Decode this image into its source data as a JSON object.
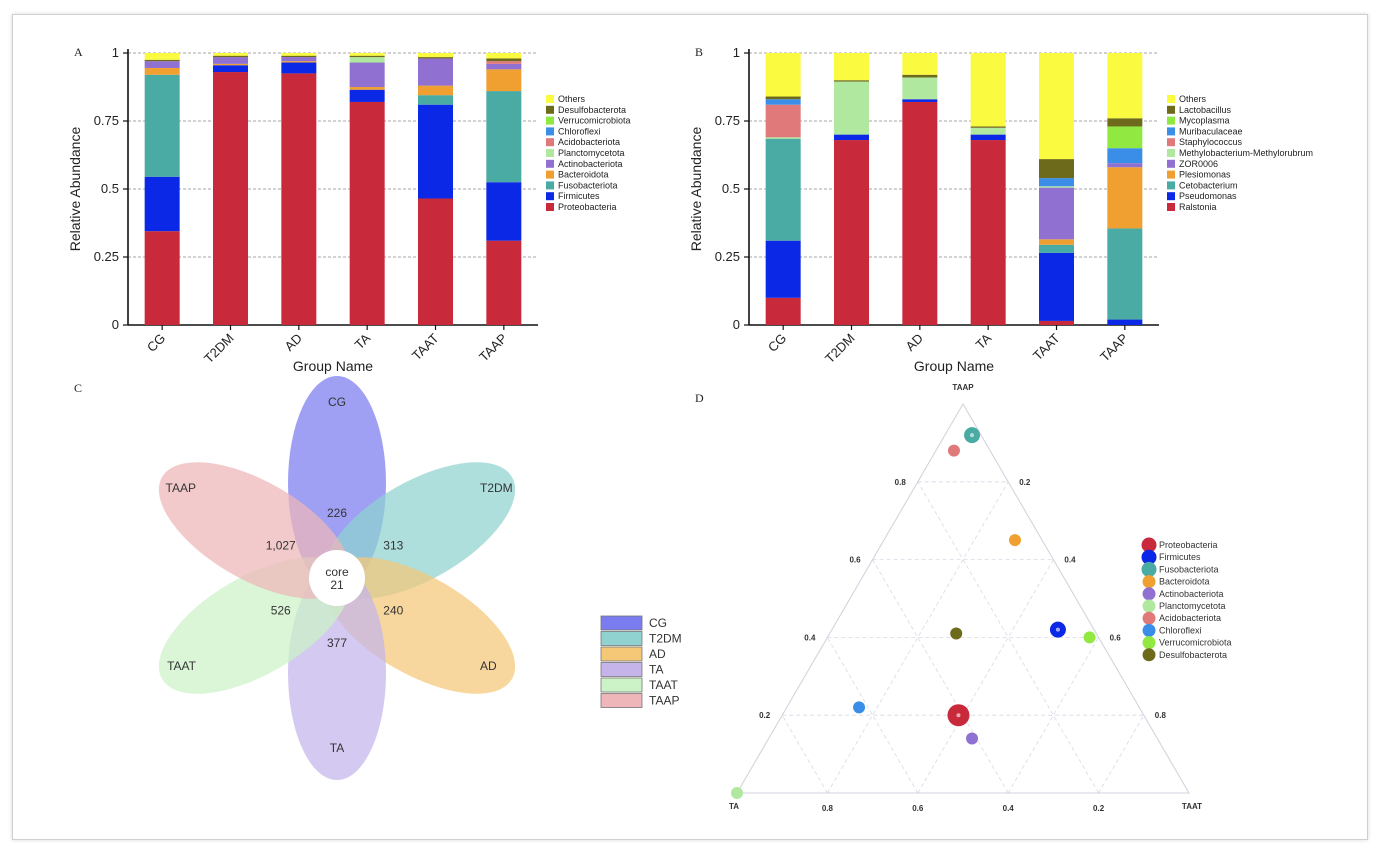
{
  "panels": {
    "a": "A",
    "b": "B",
    "c": "C",
    "d": "D"
  },
  "chart_data": [
    {
      "type": "bar",
      "stacked": true,
      "panel": "A",
      "xlabel": "Group Name",
      "ylabel": "Relative Abundance",
      "ylim": [
        0,
        1
      ],
      "yticks": [
        "0",
        "0.25",
        "0.5",
        "0.75",
        "1"
      ],
      "categories": [
        "CG",
        "T2DM",
        "AD",
        "TA",
        "TAAT",
        "TAAP"
      ],
      "grid": "dashed horizontal",
      "legend_position": "right",
      "series": [
        {
          "name": "Proteobacteria",
          "color": "#c82a3c",
          "values": [
            0.345,
            0.93,
            0.925,
            0.82,
            0.465,
            0.31
          ]
        },
        {
          "name": "Firmicutes",
          "color": "#0a28e6",
          "values": [
            0.2,
            0.025,
            0.04,
            0.045,
            0.345,
            0.215
          ]
        },
        {
          "name": "Fusobacteriota",
          "color": "#4aaaa4",
          "values": [
            0.375,
            0.0,
            0.0,
            0.0,
            0.035,
            0.335
          ]
        },
        {
          "name": "Bacteroidota",
          "color": "#f0a030",
          "values": [
            0.025,
            0.005,
            0.005,
            0.01,
            0.035,
            0.08
          ]
        },
        {
          "name": "Actinobacteriota",
          "color": "#9070d0",
          "values": [
            0.025,
            0.025,
            0.015,
            0.09,
            0.1,
            0.02
          ]
        },
        {
          "name": "Planctomycetota",
          "color": "#b0e8a0",
          "values": [
            0.0,
            0.0,
            0.0,
            0.02,
            0.0,
            0.0
          ]
        },
        {
          "name": "Acidobacteriota",
          "color": "#e07a7a",
          "values": [
            0.0,
            0.0,
            0.0,
            0.0,
            0.0,
            0.01
          ]
        },
        {
          "name": "Chloroflexi",
          "color": "#3a8ee8",
          "values": [
            0.0,
            0.0,
            0.0,
            0.0,
            0.0,
            0.0
          ]
        },
        {
          "name": "Verrucomicrobiota",
          "color": "#90e840",
          "values": [
            0.0,
            0.0,
            0.0,
            0.0,
            0.0,
            0.0
          ]
        },
        {
          "name": "Desulfobacterota",
          "color": "#6e6a1c",
          "values": [
            0.005,
            0.005,
            0.005,
            0.005,
            0.005,
            0.01
          ]
        },
        {
          "name": "Others",
          "color": "#fafa40",
          "values": [
            0.025,
            0.01,
            0.01,
            0.01,
            0.015,
            0.02
          ]
        }
      ]
    },
    {
      "type": "bar",
      "stacked": true,
      "panel": "B",
      "xlabel": "Group Name",
      "ylabel": "Relative Abundance",
      "ylim": [
        0,
        1
      ],
      "yticks": [
        "0",
        "0.25",
        "0.5",
        "0.75",
        "1"
      ],
      "categories": [
        "CG",
        "T2DM",
        "AD",
        "TA",
        "TAAT",
        "TAAP"
      ],
      "grid": "dashed horizontal",
      "legend_position": "right",
      "series": [
        {
          "name": "Ralstonia",
          "color": "#c82a3c",
          "values": [
            0.1,
            0.68,
            0.82,
            0.68,
            0.015,
            0.0
          ]
        },
        {
          "name": "Pseudomonas",
          "color": "#0a28e6",
          "values": [
            0.21,
            0.02,
            0.01,
            0.02,
            0.25,
            0.02
          ]
        },
        {
          "name": "Cetobacterium",
          "color": "#4aaaa4",
          "values": [
            0.375,
            0.0,
            0.0,
            0.0,
            0.03,
            0.335
          ]
        },
        {
          "name": "Plesiomonas",
          "color": "#f0a030",
          "values": [
            0.0,
            0.0,
            0.0,
            0.0,
            0.02,
            0.225
          ]
        },
        {
          "name": "ZOR0006",
          "color": "#9070d0",
          "values": [
            0.0,
            0.0,
            0.0,
            0.0,
            0.19,
            0.015
          ]
        },
        {
          "name": "Methylobacterium-Methylorubrum",
          "color": "#b0e8a0",
          "values": [
            0.005,
            0.195,
            0.08,
            0.025,
            0.005,
            0.0
          ]
        },
        {
          "name": "Staphylococcus",
          "color": "#e07a7a",
          "values": [
            0.12,
            0.0,
            0.0,
            0.0,
            0.0,
            0.0
          ]
        },
        {
          "name": "Muribaculaceae",
          "color": "#3a8ee8",
          "values": [
            0.02,
            0.0,
            0.0,
            0.0,
            0.03,
            0.055
          ]
        },
        {
          "name": "Mycoplasma",
          "color": "#90e840",
          "values": [
            0.0,
            0.0,
            0.0,
            0.0,
            0.0,
            0.08
          ]
        },
        {
          "name": "Lactobacillus",
          "color": "#6e6a1c",
          "values": [
            0.01,
            0.005,
            0.01,
            0.005,
            0.07,
            0.03
          ]
        },
        {
          "name": "Others",
          "color": "#fafa40",
          "values": [
            0.16,
            0.1,
            0.08,
            0.27,
            0.39,
            0.24
          ]
        }
      ]
    },
    {
      "type": "venn",
      "panel": "C",
      "core_label": "core",
      "core_value": "21",
      "petals": [
        {
          "name": "CG",
          "value": "226",
          "color": "#7a7cf0"
        },
        {
          "name": "T2DM",
          "value": "313",
          "color": "#8fd2d0"
        },
        {
          "name": "AD",
          "value": "240",
          "color": "#f5c878"
        },
        {
          "name": "TA",
          "value": "377",
          "color": "#c4b4ea"
        },
        {
          "name": "TAAT",
          "value": "526",
          "color": "#ccf2c8"
        },
        {
          "name": "TAAP",
          "value": "1,027",
          "color": "#eeb6b8"
        }
      ],
      "legend_position": "right"
    },
    {
      "type": "ternary",
      "panel": "D",
      "vertices": {
        "top": "TAAP",
        "left": "TA",
        "right": "TAAT"
      },
      "ticks": [
        "0.2",
        "0.4",
        "0.6",
        "0.8"
      ],
      "legend_position": "right",
      "points": [
        {
          "name": "Proteobacteria",
          "color": "#c82a3c",
          "TAAP": 0.2,
          "TA": 0.41,
          "TAAT": 0.39,
          "size": "large"
        },
        {
          "name": "Firmicutes",
          "color": "#0a28e6",
          "TAAP": 0.42,
          "TA": 0.08,
          "TAAT": 0.5,
          "size": "medium"
        },
        {
          "name": "Fusobacteriota",
          "color": "#4aaaa4",
          "TAAP": 0.92,
          "TA": 0.02,
          "TAAT": 0.06,
          "size": "medium"
        },
        {
          "name": "Bacteroidota",
          "color": "#f0a030",
          "TAAP": 0.65,
          "TA": 0.06,
          "TAAT": 0.29,
          "size": "small"
        },
        {
          "name": "Actinobacteriota",
          "color": "#9070d0",
          "TAAP": 0.14,
          "TA": 0.41,
          "TAAT": 0.45,
          "size": "small"
        },
        {
          "name": "Planctomycetota",
          "color": "#b0e8a0",
          "TAAP": 0.0,
          "TA": 1.0,
          "TAAT": 0.0,
          "size": "small"
        },
        {
          "name": "Acidobacteriota",
          "color": "#e07a7a",
          "TAAP": 0.88,
          "TA": 0.08,
          "TAAT": 0.04,
          "size": "small"
        },
        {
          "name": "Chloroflexi",
          "color": "#3a8ee8",
          "TAAP": 0.22,
          "TA": 0.62,
          "TAAT": 0.16,
          "size": "small"
        },
        {
          "name": "Verrucomicrobiota",
          "color": "#90e840",
          "TAAP": 0.4,
          "TA": 0.02,
          "TAAT": 0.58,
          "size": "small"
        },
        {
          "name": "Desulfobacterota",
          "color": "#6e6a1c",
          "TAAP": 0.41,
          "TA": 0.31,
          "TAAT": 0.28,
          "size": "small"
        }
      ]
    }
  ]
}
